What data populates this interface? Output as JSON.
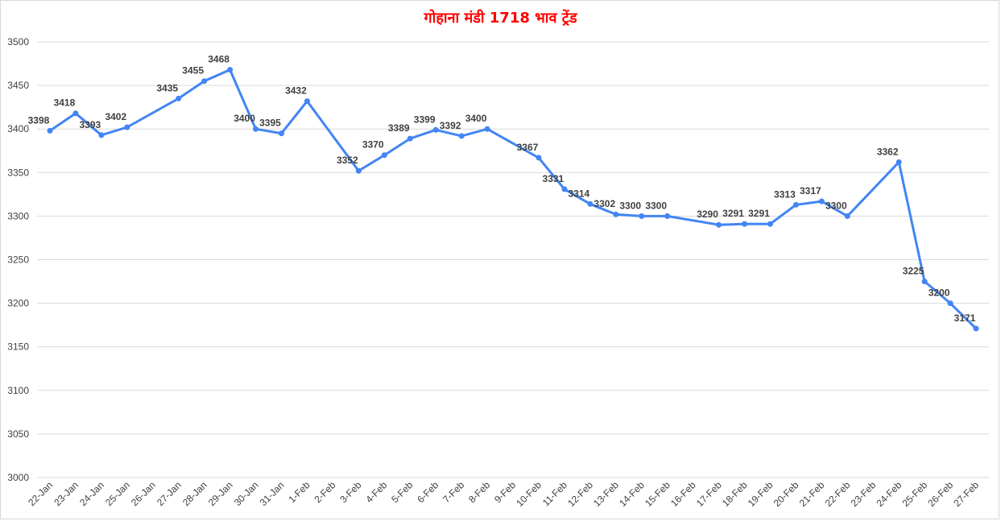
{
  "chart_data": {
    "type": "line",
    "title": "गोहाना मंडी 1718 भाव ट्रेंड",
    "xlabel": "",
    "ylabel": "",
    "ylim": [
      3000,
      3500
    ],
    "yticks": [
      3000,
      3050,
      3100,
      3150,
      3200,
      3250,
      3300,
      3350,
      3400,
      3450,
      3500
    ],
    "grid": true,
    "legend": "none",
    "line_color": "#4285f4",
    "title_color": "#ff0000",
    "categories": [
      "22-Jan",
      "23-Jan",
      "24-Jan",
      "25-Jan",
      "26-Jan",
      "27-Jan",
      "28-Jan",
      "29-Jan",
      "30-Jan",
      "31-Jan",
      "1-Feb",
      "2-Feb",
      "3-Feb",
      "4-Feb",
      "5-Feb",
      "6-Feb",
      "7-Feb",
      "8-Feb",
      "9-Feb",
      "10-Feb",
      "11-Feb",
      "12-Feb",
      "13-Feb",
      "14-Feb",
      "15-Feb",
      "16-Feb",
      "17-Feb",
      "18-Feb",
      "19-Feb",
      "20-Feb",
      "21-Feb",
      "22-Feb",
      "23-Feb",
      "24-Feb",
      "25-Feb",
      "26-Feb",
      "27-Feb"
    ],
    "values": [
      3398,
      3418,
      3393,
      3402,
      null,
      3435,
      3455,
      3468,
      3400,
      3395,
      3432,
      null,
      3352,
      3370,
      3389,
      3399,
      3392,
      3400,
      null,
      3367,
      3331,
      3314,
      3302,
      3300,
      3300,
      null,
      3290,
      3291,
      3291,
      3313,
      3317,
      3300,
      null,
      3362,
      3225,
      3200,
      3171
    ]
  }
}
